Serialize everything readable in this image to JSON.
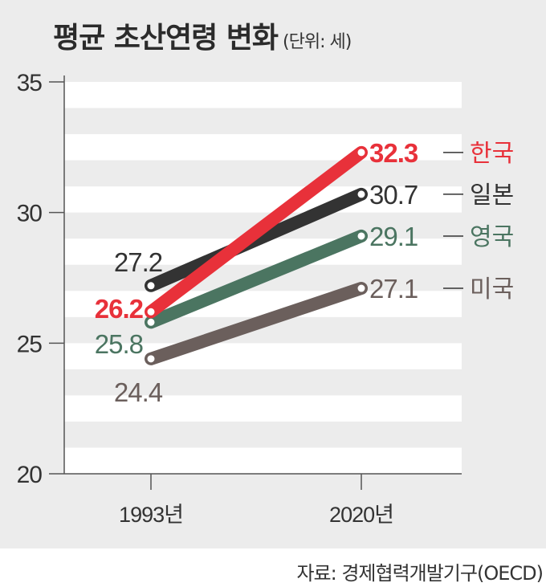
{
  "chart_data": {
    "type": "line",
    "title": "평균 초산연령 변화",
    "unit": "(단위: 세)",
    "categories": [
      "1993년",
      "2020년"
    ],
    "ylim": [
      20,
      35
    ],
    "yticks": [
      20,
      25,
      30,
      35
    ],
    "grid": "alternating horizontal bands",
    "legend": "right, inline labels",
    "series": [
      {
        "name": "미국",
        "values": [
          24.4,
          27.1
        ],
        "color": "#6b5f5c"
      },
      {
        "name": "영국",
        "values": [
          25.8,
          29.1
        ],
        "color": "#4b7561"
      },
      {
        "name": "일본",
        "values": [
          27.2,
          30.7
        ],
        "color": "#333333"
      },
      {
        "name": "한국",
        "values": [
          26.2,
          32.3
        ],
        "color": "#e8313a"
      }
    ],
    "source": "자료: 경제협력개발기구(OECD)"
  },
  "colors": {
    "background": "#ececec",
    "band": "#ffffff",
    "axis": "#555555"
  }
}
